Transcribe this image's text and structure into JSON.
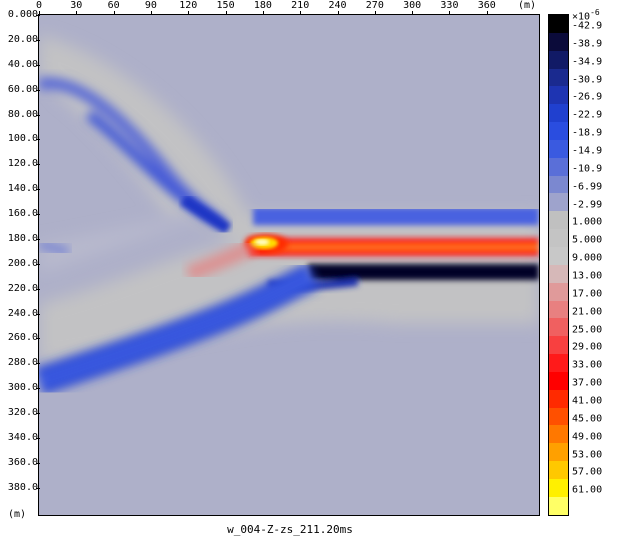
{
  "caption": "w_004-Z-zs_211.20ms",
  "axes": {
    "x_unit": "(m)",
    "y_unit": "(m)",
    "x_ticks": [
      "0",
      "30",
      "60",
      "90",
      "120",
      "150",
      "180",
      "210",
      "240",
      "270",
      "300",
      "330",
      "360"
    ],
    "y_ticks": [
      "0.000",
      "20.00",
      "40.00",
      "60.00",
      "80.00",
      "100.0",
      "120.0",
      "140.0",
      "160.0",
      "180.0",
      "200.0",
      "220.0",
      "240.0",
      "260.0",
      "280.0",
      "300.0",
      "320.0",
      "340.0",
      "360.0",
      "380.0"
    ],
    "x_range": [
      0,
      402
    ],
    "y_range": [
      0,
      402
    ]
  },
  "colorbar": {
    "unit_base": "×10",
    "unit_exp": "-6",
    "labels": [
      "-42.9",
      "-38.9",
      "-34.9",
      "-30.9",
      "-26.9",
      "-22.9",
      "-18.9",
      "-14.9",
      "-10.9",
      "-6.99",
      "-2.99",
      "1.000",
      "5.000",
      "9.000",
      "13.00",
      "17.00",
      "21.00",
      "25.00",
      "29.00",
      "33.00",
      "37.00",
      "41.00",
      "45.00",
      "49.00",
      "53.00",
      "57.00",
      "61.00"
    ],
    "colors": [
      "#000000",
      "#0b0b3a",
      "#111a66",
      "#1a2a8f",
      "#1e34b2",
      "#2040cf",
      "#2a4de0",
      "#3a5ae0",
      "#5a6fd8",
      "#7b88d0",
      "#9ea3cc",
      "#c0c0c0",
      "#c4c4c4",
      "#c8c8c8",
      "#d6b8b8",
      "#e09a9a",
      "#e88080",
      "#f06060",
      "#f84040",
      "#ff1a1a",
      "#ff0000",
      "#ff2a00",
      "#ff5000",
      "#ff7800",
      "#ffa000",
      "#ffc800",
      "#fff000",
      "#ffff66"
    ]
  }
}
